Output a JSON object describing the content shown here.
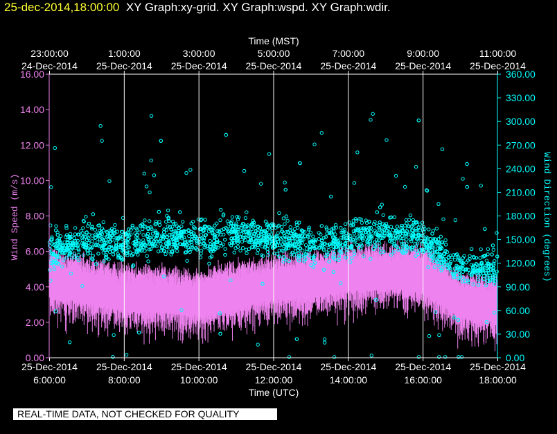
{
  "header": {
    "timestamp": "25-dec-2014,18:00:00",
    "graphs": "XY Graph:xy-grid.  XY Graph:wspd.  XY Graph:wdir."
  },
  "footer": {
    "disclaimer": "REAL-TIME DATA, NOT CHECKED FOR QUALITY"
  },
  "colors": {
    "wspd": "#ee82ee",
    "wdir": "#00ffff",
    "grid": "#ffffff",
    "title_time": "#ffff33"
  },
  "chart_data": {
    "type": "scatter",
    "x_top": {
      "label": "Time (MST)",
      "ticks": [
        [
          "23:00:00",
          "24-Dec-2014"
        ],
        [
          "1:00:00",
          "25-Dec-2014"
        ],
        [
          "3:00:00",
          "25-Dec-2014"
        ],
        [
          "5:00:00",
          "25-Dec-2014"
        ],
        [
          "7:00:00",
          "25-Dec-2014"
        ],
        [
          "9:00:00",
          "25-Dec-2014"
        ],
        [
          "11:00:00",
          "25-Dec-2014"
        ]
      ]
    },
    "x_bottom": {
      "label": "Time (UTC)",
      "ticks": [
        [
          "25-Dec-2014",
          "6:00:00"
        ],
        [
          "25-Dec-2014",
          "8:00:00"
        ],
        [
          "25-Dec-2014",
          "10:00:00"
        ],
        [
          "25-Dec-2014",
          "12:00:00"
        ],
        [
          "25-Dec-2014",
          "14:00:00"
        ],
        [
          "25-Dec-2014",
          "16:00:00"
        ],
        [
          "25-Dec-2014",
          "18:00:00"
        ]
      ],
      "range_utc_hours": [
        6,
        18
      ]
    },
    "y_left": {
      "label": "Wind Speed (m/s)",
      "range": [
        0,
        16
      ],
      "ticks": [
        "0.00",
        "2.00",
        "4.00",
        "6.00",
        "8.00",
        "10.00",
        "12.00",
        "14.00",
        "16.00"
      ]
    },
    "y_right": {
      "label": "Wind Direction (degrees)",
      "range": [
        0,
        360
      ],
      "ticks": [
        "0.00",
        "30.00",
        "60.00",
        "90.00",
        "120.00",
        "150.00",
        "180.00",
        "210.00",
        "240.00",
        "270.00",
        "300.00",
        "330.00",
        "360.00"
      ]
    },
    "grid": "vertical-only",
    "series": [
      {
        "key": "wspd",
        "style": "vertical-lines",
        "hourly_mean_mps": [
          [
            6,
            4.1
          ],
          [
            7,
            3.7
          ],
          [
            8,
            3.3
          ],
          [
            9,
            3.2
          ],
          [
            10,
            3.0
          ],
          [
            11,
            3.4
          ],
          [
            12,
            3.9
          ],
          [
            13,
            4.0
          ],
          [
            14,
            4.4
          ],
          [
            15,
            4.5
          ],
          [
            16,
            4.4
          ],
          [
            17,
            2.9
          ],
          [
            18,
            2.6
          ]
        ]
      },
      {
        "key": "wdir",
        "style": "open-circles",
        "hourly_mean_deg": [
          [
            6,
            135
          ],
          [
            7,
            150
          ],
          [
            8,
            145
          ],
          [
            9,
            155
          ],
          [
            10,
            150
          ],
          [
            11,
            160
          ],
          [
            12,
            150
          ],
          [
            13,
            145
          ],
          [
            14,
            150
          ],
          [
            15,
            160
          ],
          [
            16,
            150
          ],
          [
            17,
            115
          ],
          [
            18,
            110
          ]
        ]
      }
    ]
  }
}
